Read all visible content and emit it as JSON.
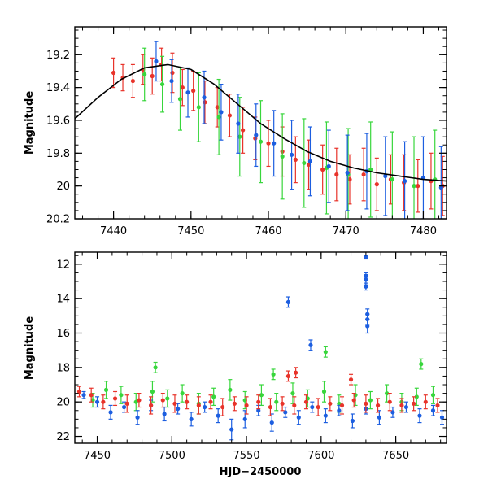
{
  "chart_data": [
    {
      "type": "scatter",
      "panel": "top",
      "xlabel": "",
      "ylabel": "Magnitude",
      "xlim": [
        7435,
        7483
      ],
      "ylim": [
        20.2,
        19.03
      ],
      "y_inverted": true,
      "x_ticks": [
        7440,
        7450,
        7460,
        7470,
        7480
      ],
      "x_tick_labels": [
        "7440",
        "7450",
        "7460",
        "7470",
        "7480"
      ],
      "y_ticks": [
        19.2,
        19.4,
        19.6,
        19.8,
        20,
        20.2
      ],
      "y_tick_labels": [
        "19.2",
        "19.4",
        "19.6",
        "19.8",
        "20",
        "20.2"
      ],
      "colors": {
        "red": "#e8332a",
        "green": "#38d63c",
        "blue": "#1c5ee0",
        "model": "#000000"
      },
      "model_curve": {
        "x": [
          7435,
          7438,
          7441,
          7444,
          7447,
          7450,
          7453,
          7456,
          7459,
          7462,
          7465,
          7468,
          7471,
          7474,
          7477,
          7480,
          7483
        ],
        "y": [
          19.59,
          19.46,
          19.35,
          19.28,
          19.26,
          19.29,
          19.38,
          19.5,
          19.62,
          19.71,
          19.79,
          19.85,
          19.89,
          19.92,
          19.94,
          19.96,
          19.97
        ]
      },
      "series": [
        {
          "color": "red",
          "x": [
            7440.0,
            7441.2,
            7442.5,
            7443.8,
            7445.0,
            7446.2,
            7447.6,
            7448.9,
            7450.3,
            7451.8,
            7453.4,
            7455.0,
            7456.7,
            7458.3,
            7460.0,
            7461.8,
            7463.5,
            7465.2,
            7467.0,
            7468.8,
            7470.5,
            7472.3,
            7474.0,
            7475.8,
            7477.5,
            7479.3,
            7481.0,
            7482.5
          ],
          "y": [
            19.31,
            19.34,
            19.36,
            19.29,
            19.33,
            19.26,
            19.31,
            19.4,
            19.42,
            19.49,
            19.52,
            19.57,
            19.66,
            19.71,
            19.74,
            19.79,
            19.84,
            19.87,
            19.9,
            19.93,
            19.96,
            19.93,
            19.99,
            19.96,
            19.98,
            20.0,
            19.97,
            20.0
          ],
          "err": [
            0.09,
            0.08,
            0.1,
            0.09,
            0.11,
            0.1,
            0.12,
            0.11,
            0.12,
            0.13,
            0.12,
            0.13,
            0.14,
            0.13,
            0.14,
            0.15,
            0.14,
            0.15,
            0.15,
            0.16,
            0.15,
            0.16,
            0.16,
            0.15,
            0.17,
            0.16,
            0.17,
            0.18
          ]
        },
        {
          "color": "green",
          "x": [
            7444.0,
            7446.3,
            7448.6,
            7451.0,
            7453.6,
            7456.3,
            7459.0,
            7461.8,
            7464.6,
            7467.5,
            7470.3,
            7473.2,
            7476.0,
            7478.8,
            7481.5
          ],
          "y": [
            19.32,
            19.38,
            19.47,
            19.52,
            19.58,
            19.7,
            19.73,
            19.82,
            19.86,
            19.89,
            19.93,
            19.9,
            19.96,
            20.0,
            19.96
          ],
          "err": [
            0.16,
            0.17,
            0.19,
            0.21,
            0.23,
            0.24,
            0.25,
            0.26,
            0.27,
            0.28,
            0.28,
            0.29,
            0.29,
            0.3,
            0.3
          ]
        },
        {
          "color": "blue",
          "x": [
            7445.5,
            7447.5,
            7449.6,
            7451.7,
            7453.9,
            7456.1,
            7458.4,
            7460.7,
            7463.0,
            7465.4,
            7467.8,
            7470.2,
            7472.7,
            7475.1,
            7477.6,
            7480.0,
            7482.3
          ],
          "y": [
            19.24,
            19.36,
            19.43,
            19.46,
            19.55,
            19.62,
            19.69,
            19.74,
            19.81,
            19.85,
            19.88,
            19.92,
            19.91,
            19.94,
            19.97,
            19.95,
            20.01
          ],
          "err": [
            0.12,
            0.13,
            0.15,
            0.16,
            0.17,
            0.18,
            0.19,
            0.2,
            0.21,
            0.21,
            0.22,
            0.23,
            0.23,
            0.24,
            0.24,
            0.25,
            0.25
          ]
        }
      ]
    },
    {
      "type": "scatter",
      "panel": "bottom",
      "xlabel": "HJD−2450000",
      "ylabel": "Magnitude",
      "xlim": [
        7435,
        7684
      ],
      "ylim": [
        22.4,
        11.3
      ],
      "y_inverted": true,
      "x_ticks": [
        7450,
        7500,
        7550,
        7600,
        7650
      ],
      "x_tick_labels": [
        "7450",
        "7500",
        "7550",
        "7600",
        "7650"
      ],
      "y_ticks": [
        12,
        14,
        16,
        18,
        20,
        22
      ],
      "y_tick_labels": [
        "12",
        "14",
        "16",
        "18",
        "20",
        "22"
      ],
      "colors": {
        "red": "#e8332a",
        "green": "#38d63c",
        "blue": "#1c5ee0"
      },
      "series": [
        {
          "color": "green",
          "x": [
            7447,
            7456,
            7466,
            7476,
            7487,
            7497,
            7507,
            7518,
            7528,
            7539,
            7549,
            7560,
            7570,
            7581,
            7591,
            7602,
            7612,
            7623,
            7633,
            7644,
            7654,
            7664,
            7675
          ],
          "y": [
            19.9,
            19.3,
            19.6,
            20.0,
            19.4,
            19.8,
            19.5,
            20.1,
            19.7,
            19.3,
            19.9,
            19.6,
            20.0,
            19.5,
            19.8,
            19.4,
            20.1,
            19.6,
            19.9,
            19.5,
            20.0,
            19.7,
            19.6
          ],
          "err": [
            0.4,
            0.5,
            0.5,
            0.5,
            0.6,
            0.5,
            0.5,
            0.6,
            0.5,
            0.6,
            0.5,
            0.6,
            0.5,
            0.6,
            0.5,
            0.6,
            0.5,
            0.6,
            0.5,
            0.5,
            0.5,
            0.5,
            0.5
          ]
        },
        {
          "color": "blue",
          "x": [
            7441,
            7450,
            7459,
            7468,
            7477,
            7486,
            7495,
            7504,
            7513,
            7522,
            7531,
            7540,
            7549,
            7558,
            7567,
            7576,
            7585,
            7594,
            7603,
            7612,
            7621,
            7630,
            7639,
            7648,
            7657,
            7666,
            7675,
            7681
          ],
          "y": [
            19.6,
            20.0,
            20.6,
            20.3,
            20.9,
            20.2,
            20.7,
            20.4,
            21.0,
            20.3,
            20.8,
            21.6,
            21.0,
            20.5,
            21.2,
            20.6,
            20.9,
            20.3,
            20.8,
            20.5,
            21.1,
            20.4,
            20.9,
            20.6,
            20.3,
            20.8,
            20.5,
            20.9
          ],
          "err": [
            0.2,
            0.3,
            0.4,
            0.3,
            0.4,
            0.3,
            0.4,
            0.3,
            0.4,
            0.3,
            0.4,
            0.6,
            0.5,
            0.3,
            0.5,
            0.3,
            0.4,
            0.3,
            0.4,
            0.3,
            0.4,
            0.3,
            0.4,
            0.3,
            0.3,
            0.4,
            0.3,
            0.4
          ]
        },
        {
          "color": "red",
          "x": [
            7438,
            7446,
            7454,
            7462,
            7470,
            7478,
            7486,
            7494,
            7502,
            7510,
            7518,
            7526,
            7534,
            7542,
            7550,
            7558,
            7566,
            7574,
            7582,
            7590,
            7598,
            7606,
            7614,
            7622,
            7630,
            7638,
            7646,
            7654,
            7662,
            7670,
            7678
          ],
          "y": [
            19.4,
            19.6,
            20.0,
            19.8,
            20.1,
            19.9,
            20.2,
            19.9,
            20.1,
            20.0,
            20.2,
            20.0,
            20.3,
            20.1,
            20.2,
            20.0,
            20.3,
            20.1,
            20.2,
            20.0,
            20.3,
            20.1,
            20.2,
            19.9,
            20.1,
            20.2,
            20.0,
            20.2,
            20.1,
            20.0,
            20.2
          ],
          "err": [
            0.3,
            0.4,
            0.4,
            0.4,
            0.5,
            0.4,
            0.5,
            0.4,
            0.5,
            0.4,
            0.5,
            0.4,
            0.5,
            0.4,
            0.5,
            0.4,
            0.5,
            0.4,
            0.5,
            0.4,
            0.5,
            0.4,
            0.5,
            0.4,
            0.5,
            0.4,
            0.5,
            0.4,
            0.4,
            0.4,
            0.4
          ]
        },
        {
          "color": "blue",
          "x": [
            7578,
            7593,
            7630,
            7630,
            7630,
            7630,
            7631,
            7631,
            7631
          ],
          "y": [
            14.2,
            16.7,
            11.6,
            12.7,
            12.9,
            13.3,
            14.9,
            15.6,
            15.2
          ],
          "err": [
            0.3,
            0.3,
            0.1,
            0.2,
            0.3,
            0.2,
            0.3,
            0.4,
            0.3
          ]
        },
        {
          "color": "green",
          "x": [
            7489,
            7568,
            7603,
            7667
          ],
          "y": [
            18.0,
            18.4,
            17.1,
            17.8
          ],
          "err": [
            0.3,
            0.3,
            0.3,
            0.3
          ]
        },
        {
          "color": "red",
          "x": [
            7578,
            7583,
            7620
          ],
          "y": [
            18.5,
            18.3,
            18.7
          ],
          "err": [
            0.3,
            0.3,
            0.3
          ]
        }
      ]
    }
  ]
}
